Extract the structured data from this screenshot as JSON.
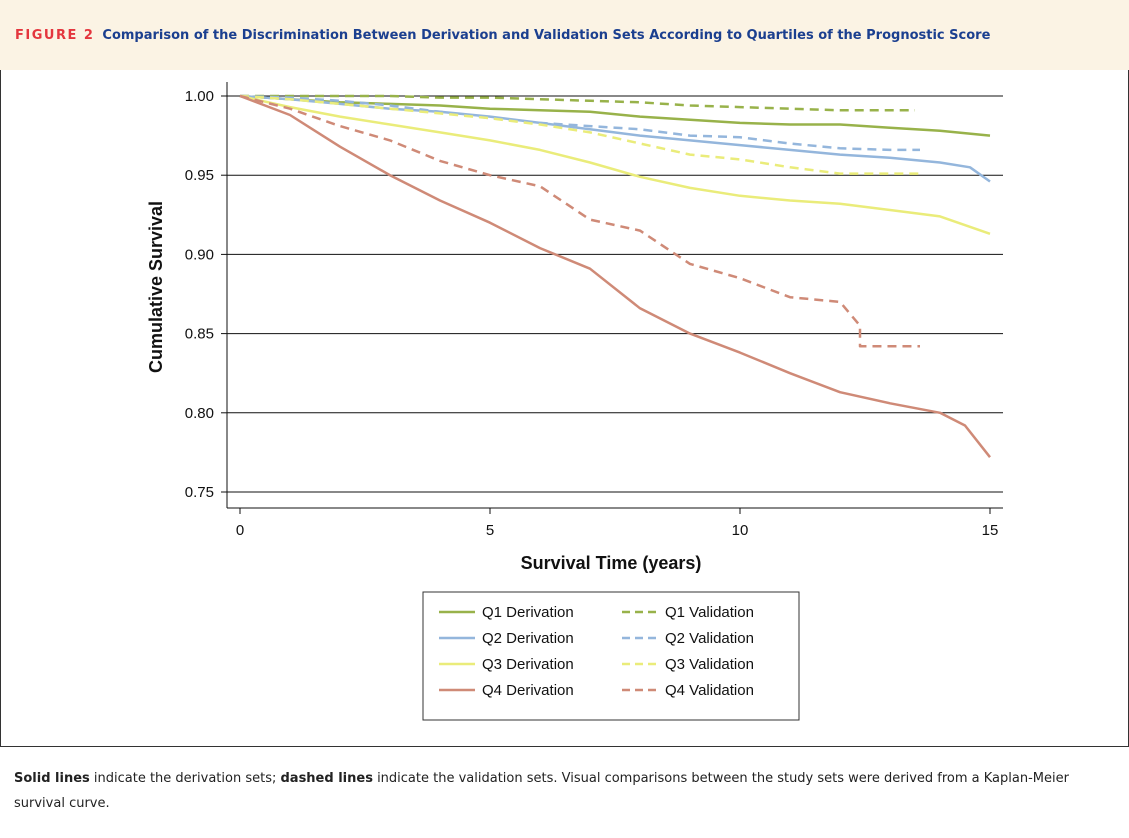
{
  "header": {
    "figure_label": "FIGURE 2",
    "title": "Comparison of the Discrimination Between Derivation and Validation Sets According to Quartiles of the Prognostic Score"
  },
  "caption": {
    "solid_bold": "Solid lines",
    "solid_rest": " indicate the derivation sets; ",
    "dashed_bold": "dashed lines",
    "dashed_rest": " indicate the validation sets. Visual comparisons between the study sets were derived from a Kaplan-Meier survival curve."
  },
  "colors": {
    "header_bg": "#fbf3e4",
    "header_text": "#1b3f8f",
    "figure_label": "#e4363e",
    "q1": "#98b24a",
    "q2": "#94b6dc",
    "q3": "#eaec7a",
    "q4": "#cf8a77"
  },
  "chart_data": {
    "type": "line",
    "title": "",
    "xlabel": "Survival Time (years)",
    "ylabel": "Cumulative Survival",
    "xlim": [
      0,
      15
    ],
    "ylim": [
      0.75,
      1.0
    ],
    "xticks": [
      "0",
      "5",
      "10",
      "15"
    ],
    "yticks": [
      "0.75",
      "0.80",
      "0.85",
      "0.90",
      "0.95",
      "1.00"
    ],
    "grid": "horizontal",
    "legend_position": "bottom",
    "series": [
      {
        "name": "Q1 Derivation",
        "style": "solid",
        "color": "#98b24a",
        "x": [
          0,
          1,
          2,
          3,
          4,
          5,
          6,
          7,
          8,
          9,
          10,
          11,
          12,
          13,
          14,
          15
        ],
        "y": [
          1.0,
          0.998,
          0.996,
          0.995,
          0.994,
          0.992,
          0.991,
          0.99,
          0.987,
          0.985,
          0.983,
          0.982,
          0.982,
          0.98,
          0.978,
          0.975
        ]
      },
      {
        "name": "Q1 Validation",
        "style": "dashed",
        "color": "#98b24a",
        "x": [
          0,
          1,
          2,
          3,
          4,
          5,
          6,
          7,
          8,
          9,
          10,
          11,
          12,
          13,
          13.5
        ],
        "y": [
          1.0,
          1.0,
          1.0,
          1.0,
          0.999,
          0.999,
          0.998,
          0.997,
          0.996,
          0.994,
          0.993,
          0.992,
          0.991,
          0.991,
          0.991
        ]
      },
      {
        "name": "Q2 Derivation",
        "style": "solid",
        "color": "#94b6dc",
        "x": [
          0,
          1,
          2,
          3,
          4,
          5,
          6,
          7,
          8,
          9,
          10,
          11,
          12,
          13,
          14,
          14.6,
          15
        ],
        "y": [
          1.0,
          0.998,
          0.995,
          0.992,
          0.99,
          0.987,
          0.983,
          0.979,
          0.975,
          0.972,
          0.969,
          0.966,
          0.963,
          0.961,
          0.958,
          0.955,
          0.946
        ]
      },
      {
        "name": "Q2 Validation",
        "style": "dashed",
        "color": "#94b6dc",
        "x": [
          0,
          1,
          2,
          3,
          4,
          5,
          6,
          7,
          8,
          9,
          10,
          11,
          12,
          13,
          13.6
        ],
        "y": [
          1.0,
          0.999,
          0.997,
          0.994,
          0.99,
          0.986,
          0.983,
          0.981,
          0.979,
          0.975,
          0.974,
          0.97,
          0.967,
          0.966,
          0.966
        ]
      },
      {
        "name": "Q3 Derivation",
        "style": "solid",
        "color": "#eaec7a",
        "x": [
          0,
          1,
          2,
          3,
          4,
          5,
          6,
          7,
          8,
          9,
          10,
          11,
          12,
          13,
          14,
          15
        ],
        "y": [
          1.0,
          0.993,
          0.987,
          0.982,
          0.977,
          0.972,
          0.966,
          0.958,
          0.949,
          0.942,
          0.937,
          0.934,
          0.932,
          0.928,
          0.924,
          0.913
        ]
      },
      {
        "name": "Q3 Validation",
        "style": "dashed",
        "color": "#eaec7a",
        "x": [
          0,
          1,
          2,
          3,
          4,
          5,
          6,
          7,
          8,
          9,
          10,
          11,
          12,
          13,
          13.6
        ],
        "y": [
          1.0,
          0.998,
          0.995,
          0.992,
          0.989,
          0.986,
          0.982,
          0.977,
          0.97,
          0.963,
          0.96,
          0.955,
          0.951,
          0.951,
          0.951
        ]
      },
      {
        "name": "Q4 Derivation",
        "style": "solid",
        "color": "#cf8a77",
        "x": [
          0,
          1,
          2,
          3,
          4,
          5,
          6,
          7,
          8,
          9,
          10,
          11,
          12,
          13,
          14,
          14.5,
          15
        ],
        "y": [
          1.0,
          0.988,
          0.968,
          0.95,
          0.934,
          0.92,
          0.904,
          0.891,
          0.866,
          0.85,
          0.838,
          0.825,
          0.813,
          0.806,
          0.8,
          0.792,
          0.772
        ]
      },
      {
        "name": "Q4 Validation",
        "style": "dashed",
        "color": "#cf8a77",
        "x": [
          0,
          1,
          2,
          3,
          4,
          5,
          6,
          7,
          8,
          9,
          10,
          11,
          12,
          12.4,
          12.4,
          13.6
        ],
        "y": [
          1.0,
          0.992,
          0.981,
          0.972,
          0.959,
          0.95,
          0.943,
          0.922,
          0.915,
          0.894,
          0.885,
          0.873,
          0.87,
          0.855,
          0.842,
          0.842
        ]
      }
    ]
  }
}
